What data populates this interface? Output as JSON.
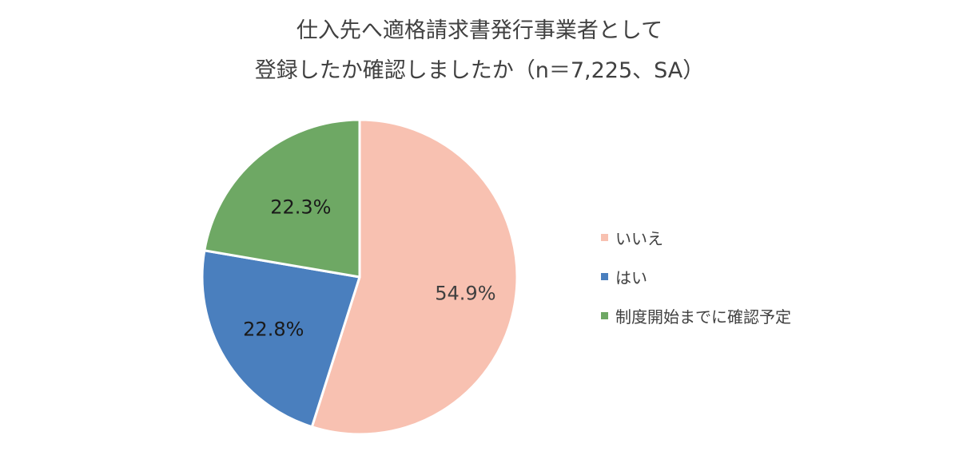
{
  "chart_data": {
    "type": "pie",
    "title_lines": [
      "仕入先へ適格請求書発行事業者として",
      "登録したか確認しましたか（n＝7,225、SA）"
    ],
    "slices": [
      {
        "label": "いいえ",
        "value": 54.9,
        "display": "54.9%",
        "color": "#F8C1B1"
      },
      {
        "label": "はい",
        "value": 22.8,
        "display": "22.8%",
        "color": "#4A7FBE"
      },
      {
        "label": "制度開始までに確認予定",
        "value": 22.3,
        "display": "22.3%",
        "color": "#6EA864"
      }
    ],
    "legend_position": "right"
  }
}
